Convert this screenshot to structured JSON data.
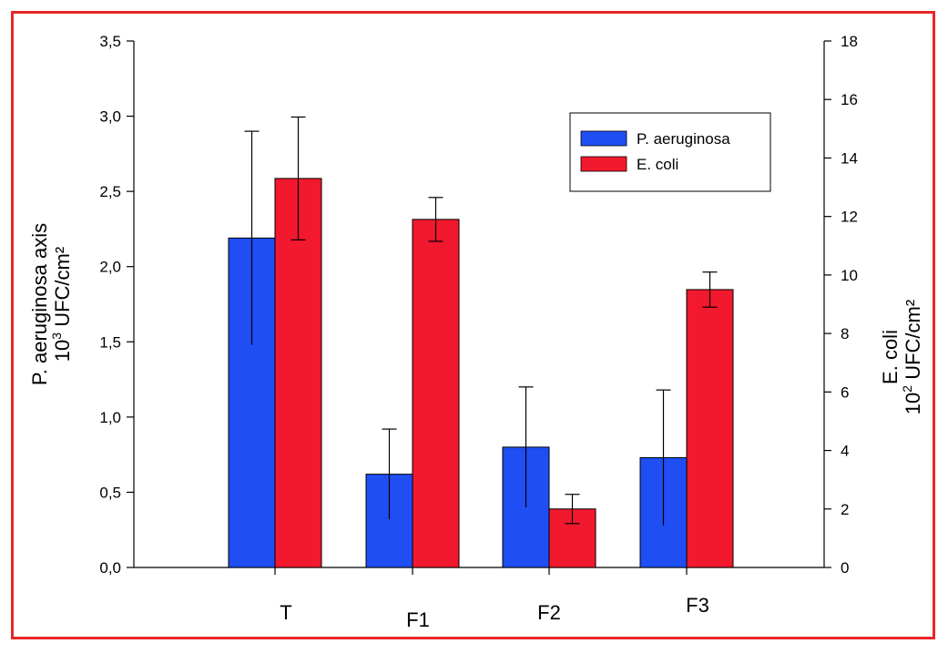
{
  "chart_data": {
    "type": "bar",
    "categories": [
      "T",
      "F1",
      "F2",
      "F3"
    ],
    "series": [
      {
        "name": "P. aeruginosa",
        "axis": "left",
        "color": "#1f4ef2",
        "values": [
          2.19,
          0.62,
          0.8,
          0.73
        ],
        "errors": [
          0.71,
          0.3,
          0.4,
          0.45
        ]
      },
      {
        "name": "E. coli",
        "axis": "right",
        "color": "#f2182e",
        "values": [
          13.3,
          11.9,
          2.0,
          9.5
        ],
        "errors": [
          2.1,
          0.75,
          0.5,
          0.6
        ]
      }
    ],
    "y_left": {
      "label_line1": "P. aeruginosa axis",
      "label_line2_prefix": "10",
      "label_line2_sup": "3",
      "label_line2_suffix": " UFC/cm²",
      "ylim": [
        0,
        3.5
      ],
      "ticks": [
        "0,0",
        "0,5",
        "1,0",
        "1,5",
        "2,0",
        "2,5",
        "3,0",
        "3,5"
      ],
      "tick_values": [
        0,
        0.5,
        1.0,
        1.5,
        2.0,
        2.5,
        3.0,
        3.5
      ]
    },
    "y_right": {
      "label_line1": "E. coli",
      "label_line2_prefix": "10",
      "label_line2_sup": "2",
      "label_line2_suffix": " UFC/cm²",
      "ylim": [
        0,
        18
      ],
      "ticks": [
        "0",
        "2",
        "4",
        "6",
        "8",
        "10",
        "12",
        "14",
        "16",
        "18"
      ],
      "tick_values": [
        0,
        2,
        4,
        6,
        8,
        10,
        12,
        14,
        16,
        18
      ]
    },
    "legend": {
      "placement": "top-right",
      "entries": [
        "P. aeruginosa",
        "E. coli"
      ]
    },
    "grid": false,
    "frame_color": "#e8262a"
  }
}
